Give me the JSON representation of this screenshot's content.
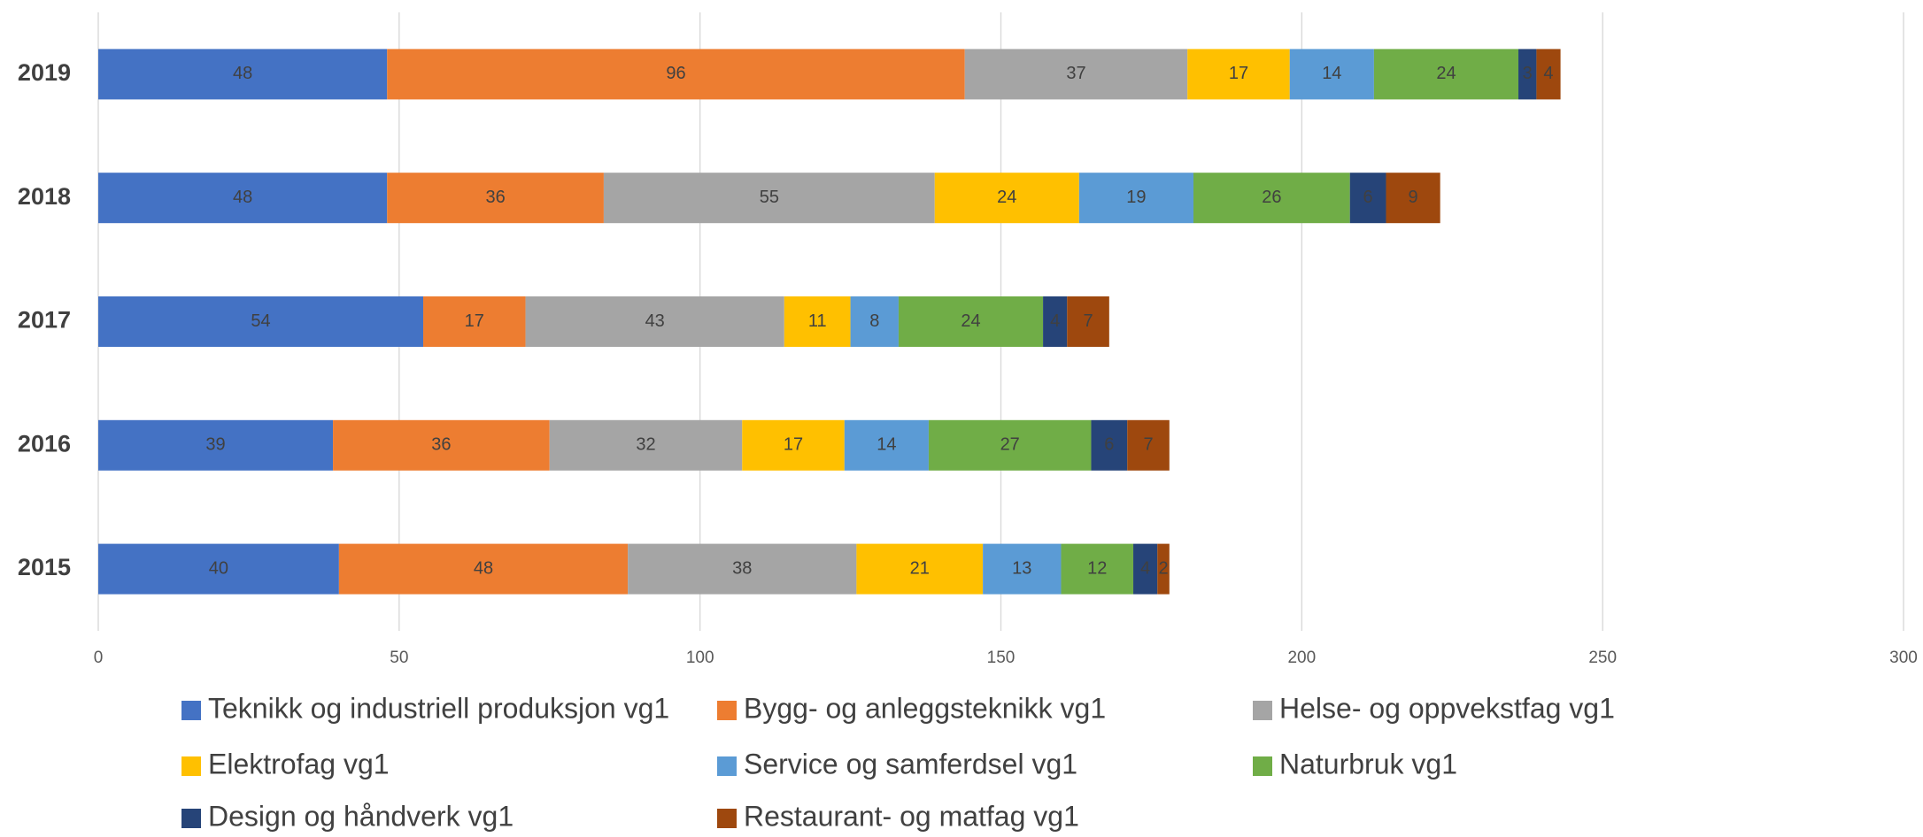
{
  "chart_data": {
    "type": "stacked_barh",
    "categories": [
      "2019",
      "2018",
      "2017",
      "2016",
      "2015"
    ],
    "series": [
      {
        "name": "Teknikk og industriell produksjon vg1",
        "color": "#4472c4",
        "values": [
          48,
          48,
          54,
          39,
          40
        ]
      },
      {
        "name": "Bygg- og anleggsteknikk vg1",
        "color": "#ed7d31",
        "values": [
          96,
          36,
          17,
          36,
          48
        ]
      },
      {
        "name": "Helse- og oppvekstfag vg1",
        "color": "#a5a5a5",
        "values": [
          37,
          55,
          43,
          32,
          38
        ]
      },
      {
        "name": "Elektrofag vg1",
        "color": "#ffc000",
        "values": [
          17,
          24,
          11,
          17,
          21
        ]
      },
      {
        "name": "Service og samferdsel vg1",
        "color": "#5b9bd5",
        "values": [
          14,
          19,
          8,
          14,
          13
        ]
      },
      {
        "name": "Naturbruk vg1",
        "color": "#70ad47",
        "values": [
          24,
          26,
          24,
          27,
          12
        ]
      },
      {
        "name": "Design og håndverk vg1",
        "color": "#264478",
        "values": [
          3,
          6,
          4,
          6,
          4
        ]
      },
      {
        "name": "Restaurant- og matfag vg1",
        "color": "#9e480e",
        "values": [
          4,
          9,
          7,
          7,
          2
        ]
      }
    ],
    "xlim": [
      0,
      300
    ],
    "xticks": [
      0,
      50,
      100,
      150,
      200,
      250,
      300
    ],
    "grid": true,
    "legend": "bottom"
  }
}
